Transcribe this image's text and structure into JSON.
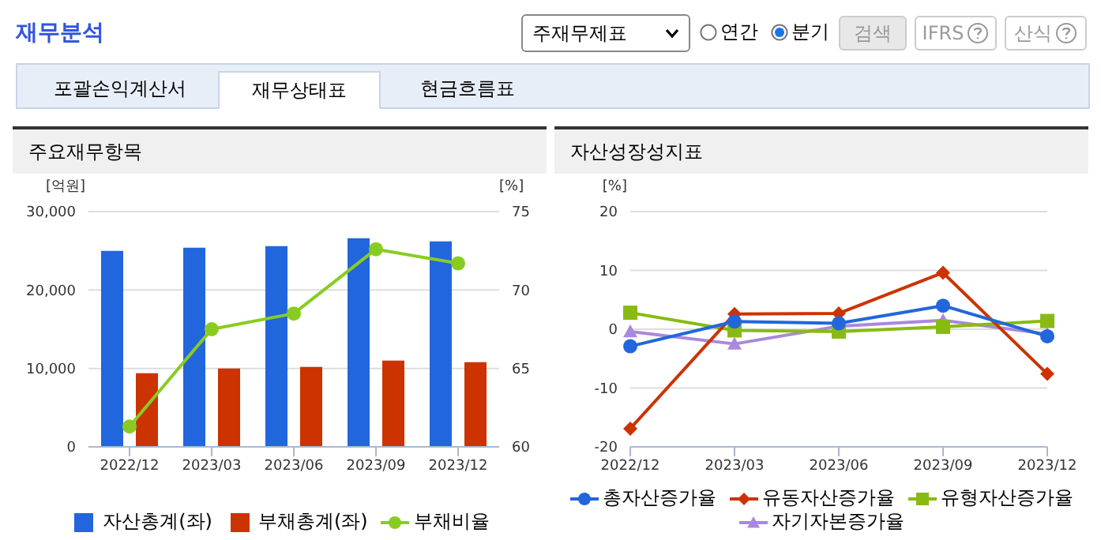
{
  "chart_data": [
    {
      "type": "other",
      "title": "재무분석",
      "annotations": [
        "주재무제표",
        "연간",
        "분기",
        "검색",
        "IFRS",
        "산식",
        "포괄손익계산서",
        "재무상태표",
        "현금흐름표"
      ]
    },
    {
      "type": "bar",
      "title": "주요재무항목",
      "ylabel": "[억원]",
      "y2label": "[%]",
      "categories": [
        "2022/12",
        "2023/03",
        "2023/06",
        "2023/09",
        "2023/12"
      ],
      "series": [
        {
          "name": "자산총계(좌)",
          "color": "#2266dd",
          "values": [
            25000,
            25400,
            25600,
            26600,
            26200
          ]
        },
        {
          "name": "부채총계(좌)",
          "color": "#cc3300",
          "values": [
            9400,
            10000,
            10200,
            11000,
            10800
          ]
        },
        {
          "name": "부채비율",
          "type": "line",
          "axis": "y2",
          "color": "#88cc22",
          "marker": "circle",
          "values": [
            61.3,
            67.5,
            68.5,
            72.6,
            71.7
          ]
        }
      ],
      "ylim": [
        0,
        30000
      ],
      "yticks": [
        0,
        {
          "value": 10000,
          "label": "10,000"
        },
        {
          "value": 20000,
          "label": "20,000"
        },
        {
          "value": 30000,
          "label": "30,000"
        }
      ],
      "y2lim": [
        60,
        75
      ],
      "y2ticks": [
        60,
        65,
        70,
        75
      ],
      "grid": "y",
      "legend": "bottom"
    },
    {
      "type": "line",
      "title": "자산성장성지표",
      "ylabel": "[%]",
      "categories": [
        "2022/12",
        "2023/03",
        "2023/06",
        "2023/09",
        "2023/12"
      ],
      "series": [
        {
          "name": "총자산증가율",
          "color": "#2266dd",
          "marker": "circle",
          "values": [
            -2.9,
            1.3,
            1.0,
            4.0,
            -1.2
          ]
        },
        {
          "name": "유동자산증가율",
          "color": "#cc3300",
          "marker": "diamond",
          "values": [
            -16.9,
            2.6,
            2.7,
            9.6,
            -7.6
          ]
        },
        {
          "name": "유형자산증가율",
          "color": "#88bb11",
          "marker": "square",
          "values": [
            2.8,
            -0.2,
            -0.4,
            0.4,
            1.4
          ]
        },
        {
          "name": "자기자본증가율",
          "color": "#aa88dd",
          "marker": "triangle",
          "values": [
            -0.4,
            -2.5,
            0.5,
            1.5,
            -0.8
          ]
        }
      ],
      "ylim": [
        -20,
        20
      ],
      "yticks": [
        -20,
        -10,
        0,
        10,
        20
      ],
      "grid": "y",
      "legend": "bottom"
    }
  ]
}
